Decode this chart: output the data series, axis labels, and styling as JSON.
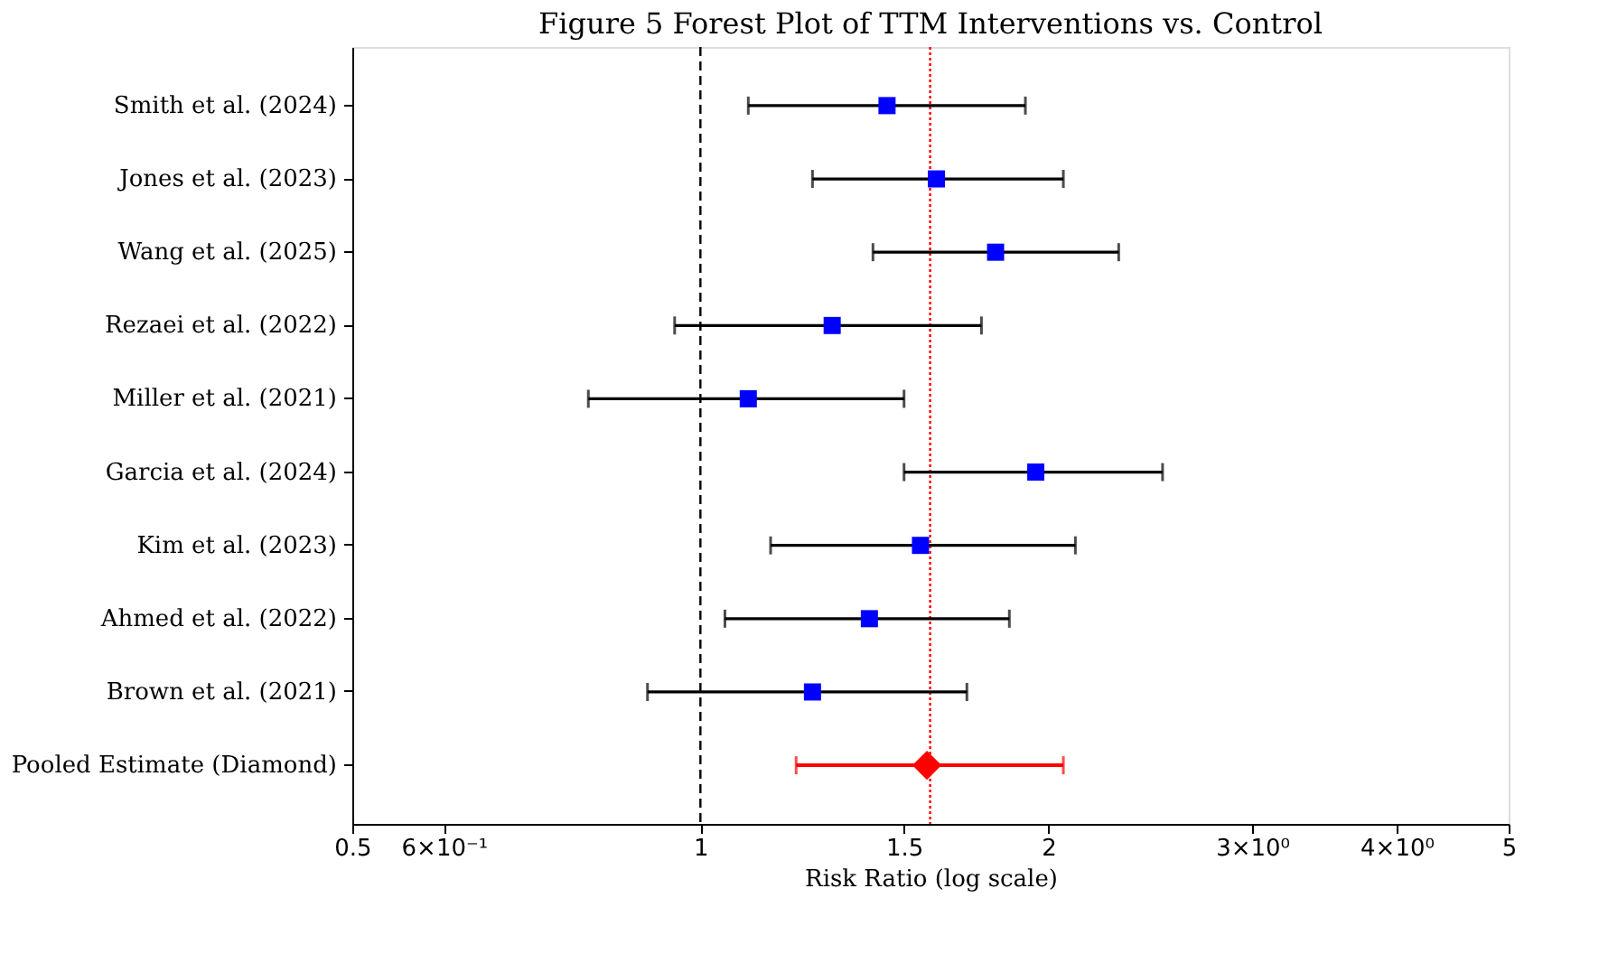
{
  "chart_data": {
    "type": "scatter",
    "orientation": "horizontal",
    "title": "Figure 5 Forest Plot of TTM Interventions vs. Control",
    "xlabel": "Risk Ratio (log scale)",
    "log": "x",
    "categories": [
      "Smith et al. (2024)",
      "Jones et al. (2023)",
      "Wang et al. (2025)",
      "Rezaei et al. (2022)",
      "Miller et al. (2021)",
      "Garcia et al. (2024)",
      "Kim et al. (2023)",
      "Ahmed et al. (2022)",
      "Brown et al. (2021)",
      "Pooled Estimate (Diamond)"
    ],
    "series": [
      {
        "color": "#0000ff",
        "marker": "square",
        "values": [
          1.45,
          1.6,
          1.8,
          1.3,
          1.1,
          1.95,
          1.55,
          1.4,
          1.25,
          null
        ],
        "errors": [
          [
            1.1,
            1.91
          ],
          [
            1.25,
            2.06
          ],
          [
            1.41,
            2.3
          ],
          [
            0.95,
            1.75
          ],
          [
            0.8,
            1.5
          ],
          [
            1.5,
            2.51
          ],
          [
            1.15,
            2.11
          ],
          [
            1.05,
            1.85
          ],
          [
            0.9,
            1.7
          ],
          null
        ]
      },
      {
        "color": "#ff0000",
        "marker": "diamond",
        "values": [
          null,
          null,
          null,
          null,
          null,
          null,
          null,
          null,
          null,
          1.57
        ],
        "errors": [
          null,
          null,
          null,
          null,
          null,
          null,
          null,
          null,
          null,
          [
            1.21,
            2.06
          ]
        ]
      }
    ],
    "xlim": [
      0.5,
      5
    ],
    "xticks": [
      0.5,
      {
        "value": 0.6,
        "label": "6×10⁻¹"
      },
      1,
      1.5,
      2,
      {
        "value": 3,
        "label": "3×10⁰"
      },
      {
        "value": 4,
        "label": "4×10⁰"
      },
      5
    ],
    "ref_lines": [
      {
        "axis": "x",
        "value": 1,
        "color": "#000000",
        "line_style": "dashed"
      },
      {
        "axis": "x",
        "value": 1.58,
        "color": "#ff0000",
        "line_style": "dotted"
      }
    ],
    "grid": false
  }
}
